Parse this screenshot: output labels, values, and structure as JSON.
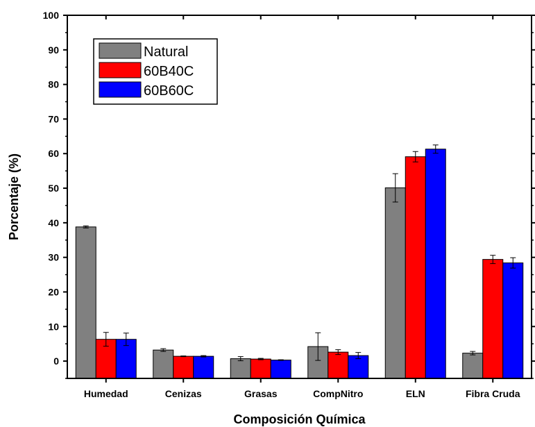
{
  "chart_data": {
    "type": "bar",
    "title": "",
    "xlabel": "Composición Química",
    "ylabel": "Porcentaje (%)",
    "ylim": [
      -5,
      100
    ],
    "yticks": [
      0,
      10,
      20,
      30,
      40,
      50,
      60,
      70,
      80,
      90,
      100
    ],
    "categories": [
      "Humedad",
      "Cenizas",
      "Grasas",
      "CompNitro",
      "ELN",
      "Fibra Cruda"
    ],
    "series": [
      {
        "name": "Natural",
        "color": "#808080",
        "values": [
          38.8,
          3.2,
          0.7,
          4.2,
          50.1,
          2.3
        ],
        "errors": [
          0.3,
          0.4,
          0.6,
          4.0,
          4.1,
          0.5
        ]
      },
      {
        "name": "60B40C",
        "color": "#ff0000",
        "values": [
          6.3,
          1.4,
          0.6,
          2.6,
          59.1,
          29.4
        ],
        "errors": [
          2.0,
          0.1,
          0.2,
          0.7,
          1.5,
          1.2
        ]
      },
      {
        "name": "60B60C",
        "color": "#0000ff",
        "values": [
          6.3,
          1.4,
          0.3,
          1.6,
          61.3,
          28.4
        ],
        "errors": [
          1.8,
          0.2,
          0.1,
          0.9,
          1.2,
          1.5
        ]
      }
    ],
    "legend_position": "top-left",
    "grid": false
  }
}
